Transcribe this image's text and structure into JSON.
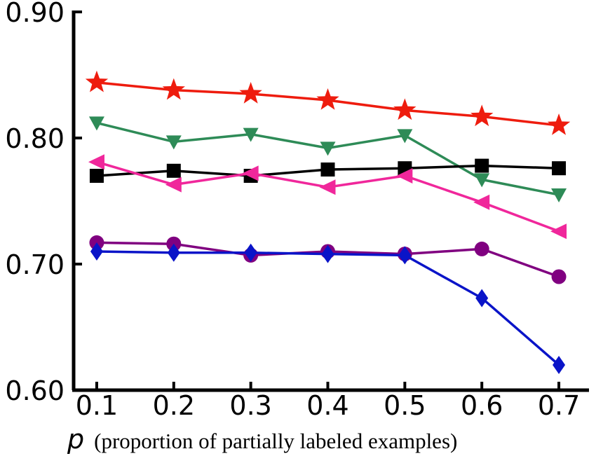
{
  "chart_data": {
    "type": "line",
    "title": "",
    "xlabel_var": "p",
    "xlabel_text": "(proportion of partially labeled examples)",
    "ylabel": "",
    "x": [
      0.1,
      0.2,
      0.3,
      0.4,
      0.5,
      0.6,
      0.7
    ],
    "x_tick_labels": [
      "0.1",
      "0.2",
      "0.3",
      "0.4",
      "0.5",
      "0.6",
      "0.7"
    ],
    "xlim": [
      0.07,
      0.73
    ],
    "y_ticks": [
      0.6,
      0.7,
      0.8,
      0.9
    ],
    "y_tick_labels": [
      "0.60",
      "0.70",
      "0.80",
      "0.90"
    ],
    "ylim": [
      0.6,
      0.9
    ],
    "grid": false,
    "legend": "none",
    "series": [
      {
        "marker": "star",
        "color": "#ee1c0e",
        "values": [
          0.844,
          0.838,
          0.835,
          0.83,
          0.822,
          0.817,
          0.81
        ]
      },
      {
        "marker": "triangle-down",
        "color": "#2e8b57",
        "values": [
          0.812,
          0.797,
          0.803,
          0.792,
          0.802,
          0.767,
          0.755
        ]
      },
      {
        "marker": "square",
        "color": "#000000",
        "values": [
          0.77,
          0.774,
          0.77,
          0.775,
          0.776,
          0.778,
          0.776
        ]
      },
      {
        "marker": "triangle-left",
        "color": "#f0279b",
        "values": [
          0.781,
          0.763,
          0.772,
          0.761,
          0.77,
          0.749,
          0.726
        ]
      },
      {
        "marker": "circle",
        "color": "#800080",
        "values": [
          0.717,
          0.716,
          0.707,
          0.71,
          0.708,
          0.712,
          0.69
        ]
      },
      {
        "marker": "diamond",
        "color": "#0a14c8",
        "values": [
          0.71,
          0.709,
          0.709,
          0.708,
          0.707,
          0.673,
          0.62
        ]
      }
    ]
  }
}
